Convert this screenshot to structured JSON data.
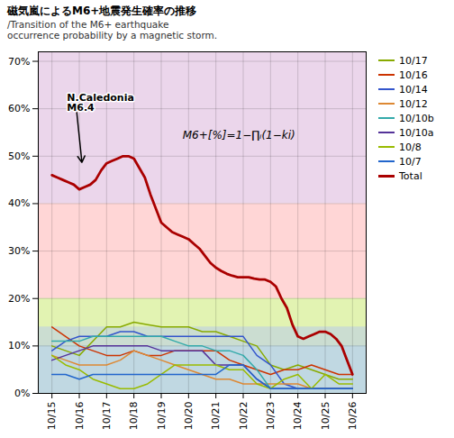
{
  "chart_data": {
    "type": "line",
    "title": "磁気嵐によるM6+地震発生確率の推移",
    "subtitle": "/Transition of the M6+ earthquake\noccurrence probability by a magnetic storm.",
    "xlim": [
      -0.5,
      11.5
    ],
    "xticks": [
      {
        "value": 0,
        "label": "10/15"
      },
      {
        "value": 1,
        "label": "10/16"
      },
      {
        "value": 2,
        "label": "10/17"
      },
      {
        "value": 3,
        "label": "10/18"
      },
      {
        "value": 4,
        "label": "10/19"
      },
      {
        "value": 5,
        "label": "10/20"
      },
      {
        "value": 6,
        "label": "10/21"
      },
      {
        "value": 7,
        "label": "10/22"
      },
      {
        "value": 8,
        "label": "10/23"
      },
      {
        "value": 9,
        "label": "10/24"
      },
      {
        "value": 10,
        "label": "10/25"
      },
      {
        "value": 11,
        "label": "10/26"
      }
    ],
    "ylim": [
      0,
      0.72
    ],
    "yticks": [
      {
        "value": 0,
        "label": "0%"
      },
      {
        "value": 0.1,
        "label": "10%"
      },
      {
        "value": 0.2,
        "label": "20%"
      },
      {
        "value": 0.3,
        "label": "30%"
      },
      {
        "value": 0.4,
        "label": "40%"
      },
      {
        "value": 0.5,
        "label": "50%"
      },
      {
        "value": 0.6,
        "label": "60%"
      },
      {
        "value": 0.7,
        "label": "70%"
      }
    ],
    "grid": true,
    "legend": "right",
    "bands": [
      {
        "y1": 0.0,
        "y2": 0.2,
        "color": "#88cc88"
      },
      {
        "y1": 0.1,
        "y2": 0.2,
        "color": "#ffff88"
      },
      {
        "y1": 0.0,
        "y2": 0.14,
        "color": "#aabbff"
      },
      {
        "y1": 0.2,
        "y2": 0.4,
        "color": "#ff9999"
      },
      {
        "y1": 0.4,
        "y2": 0.72,
        "color": "#cc99cc"
      }
    ],
    "series": [
      {
        "name": "10/17",
        "color": "#88aa00",
        "x": [
          0,
          0.5,
          1,
          1.5,
          2,
          2.5,
          3,
          3.5,
          4,
          4.5,
          5,
          5.5,
          6,
          6.5,
          7,
          7.5,
          8,
          8.5,
          9,
          9.5,
          10,
          10.5,
          11
        ],
        "values": [
          0.1,
          0.09,
          0.08,
          0.11,
          0.14,
          0.14,
          0.15,
          0.145,
          0.14,
          0.14,
          0.14,
          0.13,
          0.13,
          0.12,
          0.11,
          0.1,
          0.06,
          0.05,
          0.06,
          0.05,
          0.04,
          0.03,
          0.03
        ]
      },
      {
        "name": "10/16",
        "color": "#cc3300",
        "x": [
          0,
          0.5,
          1,
          1.5,
          2,
          2.5,
          3,
          3.5,
          4,
          4.5,
          5,
          5.5,
          6,
          6.5,
          7,
          7.5,
          8,
          8.5,
          9,
          9.5,
          10,
          10.5,
          11
        ],
        "values": [
          0.14,
          0.12,
          0.1,
          0.09,
          0.08,
          0.08,
          0.09,
          0.08,
          0.08,
          0.09,
          0.09,
          0.09,
          0.09,
          0.07,
          0.06,
          0.05,
          0.04,
          0.05,
          0.05,
          0.06,
          0.05,
          0.04,
          0.04
        ]
      },
      {
        "name": "10/14",
        "color": "#3355cc",
        "x": [
          0,
          0.5,
          1,
          1.5,
          2,
          2.5,
          3,
          3.5,
          4,
          4.5,
          5,
          5.5,
          6,
          6.5,
          7,
          7.5,
          8,
          8.5,
          9,
          9.5,
          10,
          10.5,
          11
        ],
        "values": [
          0.09,
          0.11,
          0.12,
          0.12,
          0.12,
          0.13,
          0.13,
          0.12,
          0.12,
          0.12,
          0.12,
          0.12,
          0.12,
          0.12,
          0.12,
          0.08,
          0.06,
          0.02,
          0.01,
          0.01,
          0.01,
          0.01,
          0.01
        ]
      },
      {
        "name": "10/12",
        "color": "#dd8833",
        "x": [
          0,
          0.5,
          1,
          1.5,
          2,
          2.5,
          3,
          3.5,
          4,
          4.5,
          5,
          5.5,
          6,
          6.5,
          7,
          7.5,
          8,
          8.5,
          9,
          9.5,
          10,
          10.5,
          11
        ],
        "values": [
          0.08,
          0.07,
          0.06,
          0.06,
          0.06,
          0.07,
          0.09,
          0.08,
          0.07,
          0.06,
          0.05,
          0.04,
          0.03,
          0.03,
          0.02,
          0.02,
          0.02,
          0.02,
          0.02,
          0.01,
          0.01,
          0.01,
          0.01
        ]
      },
      {
        "name": "10/10b",
        "color": "#33aaaa",
        "x": [
          0,
          0.5,
          1,
          1.5,
          2,
          2.5,
          3,
          3.5,
          4,
          4.5,
          5,
          5.5,
          6,
          6.5,
          7,
          7.5,
          8,
          8.5,
          9,
          9.5,
          10,
          10.5,
          11
        ],
        "values": [
          0.11,
          0.11,
          0.11,
          0.12,
          0.12,
          0.12,
          0.12,
          0.12,
          0.12,
          0.11,
          0.1,
          0.1,
          0.09,
          0.09,
          0.08,
          0.05,
          0.01,
          0.01,
          0.01,
          0.01,
          0.01,
          0.01,
          0.01
        ]
      },
      {
        "name": "10/10a",
        "color": "#553399",
        "x": [
          0,
          0.5,
          1,
          1.5,
          2,
          2.5,
          3,
          3.5,
          4,
          4.5,
          5,
          5.5,
          6,
          6.5,
          7,
          7.5,
          8,
          8.5,
          9,
          9.5,
          10,
          10.5,
          11
        ],
        "values": [
          0.07,
          0.08,
          0.09,
          0.1,
          0.1,
          0.1,
          0.1,
          0.1,
          0.09,
          0.09,
          0.09,
          0.09,
          0.06,
          0.06,
          0.06,
          0.03,
          0.01,
          0.01,
          0.01,
          0.01,
          0.01,
          0.01,
          0.01
        ]
      },
      {
        "name": "10/8",
        "color": "#99bb00",
        "x": [
          0,
          0.5,
          1,
          1.5,
          2,
          2.5,
          3,
          3.5,
          4,
          4.5,
          5,
          5.5,
          6,
          6.5,
          7,
          7.5,
          8,
          8.5,
          9,
          9.5,
          10,
          10.5,
          11
        ],
        "values": [
          0.08,
          0.06,
          0.05,
          0.03,
          0.02,
          0.01,
          0.01,
          0.02,
          0.04,
          0.06,
          0.06,
          0.06,
          0.06,
          0.05,
          0.05,
          0.02,
          0.01,
          0.03,
          0.04,
          0.01,
          0.04,
          0.02,
          0.02
        ]
      },
      {
        "name": "10/7",
        "color": "#2266cc",
        "x": [
          0,
          0.5,
          1,
          1.5,
          2,
          2.5,
          3,
          3.5,
          4,
          4.5,
          5,
          5.5,
          6,
          6.5,
          7,
          7.5,
          8,
          8.5,
          9,
          9.5,
          10,
          10.5,
          11
        ],
        "values": [
          0.04,
          0.04,
          0.03,
          0.04,
          0.04,
          0.04,
          0.04,
          0.04,
          0.04,
          0.04,
          0.04,
          0.04,
          0.04,
          0.06,
          0.06,
          0.03,
          0.01,
          0.01,
          0.01,
          0.01,
          0.01,
          0.01,
          0.01
        ]
      },
      {
        "name": "Total",
        "color": "#aa0000",
        "x": [
          0,
          0.2,
          0.4,
          0.6,
          0.8,
          1.0,
          1.2,
          1.4,
          1.6,
          1.8,
          2.0,
          2.2,
          2.4,
          2.6,
          2.8,
          3.0,
          3.2,
          3.4,
          3.6,
          3.8,
          4.0,
          4.2,
          4.4,
          4.6,
          4.8,
          5.0,
          5.2,
          5.4,
          5.6,
          5.8,
          6.0,
          6.2,
          6.4,
          6.6,
          6.8,
          7.0,
          7.2,
          7.4,
          7.6,
          7.8,
          8.0,
          8.2,
          8.4,
          8.6,
          8.8,
          9.0,
          9.2,
          9.4,
          9.6,
          9.8,
          10.0,
          10.2,
          10.4,
          10.6,
          10.8,
          11.0
        ],
        "values": [
          0.46,
          0.455,
          0.45,
          0.445,
          0.44,
          0.43,
          0.435,
          0.44,
          0.45,
          0.47,
          0.485,
          0.49,
          0.495,
          0.5,
          0.5,
          0.495,
          0.475,
          0.455,
          0.42,
          0.39,
          0.36,
          0.35,
          0.34,
          0.335,
          0.33,
          0.325,
          0.315,
          0.305,
          0.29,
          0.275,
          0.265,
          0.258,
          0.252,
          0.248,
          0.245,
          0.245,
          0.245,
          0.242,
          0.24,
          0.24,
          0.235,
          0.225,
          0.2,
          0.18,
          0.145,
          0.12,
          0.115,
          0.12,
          0.125,
          0.13,
          0.13,
          0.125,
          0.115,
          0.1,
          0.07,
          0.04
        ]
      }
    ],
    "annotations": [
      {
        "text": "M6+[%]=1−∏ᵢ(1−ki)"
      },
      {
        "text": "N.Caledonia\nM6.4",
        "x": 1.1,
        "y": 0.485
      }
    ]
  }
}
